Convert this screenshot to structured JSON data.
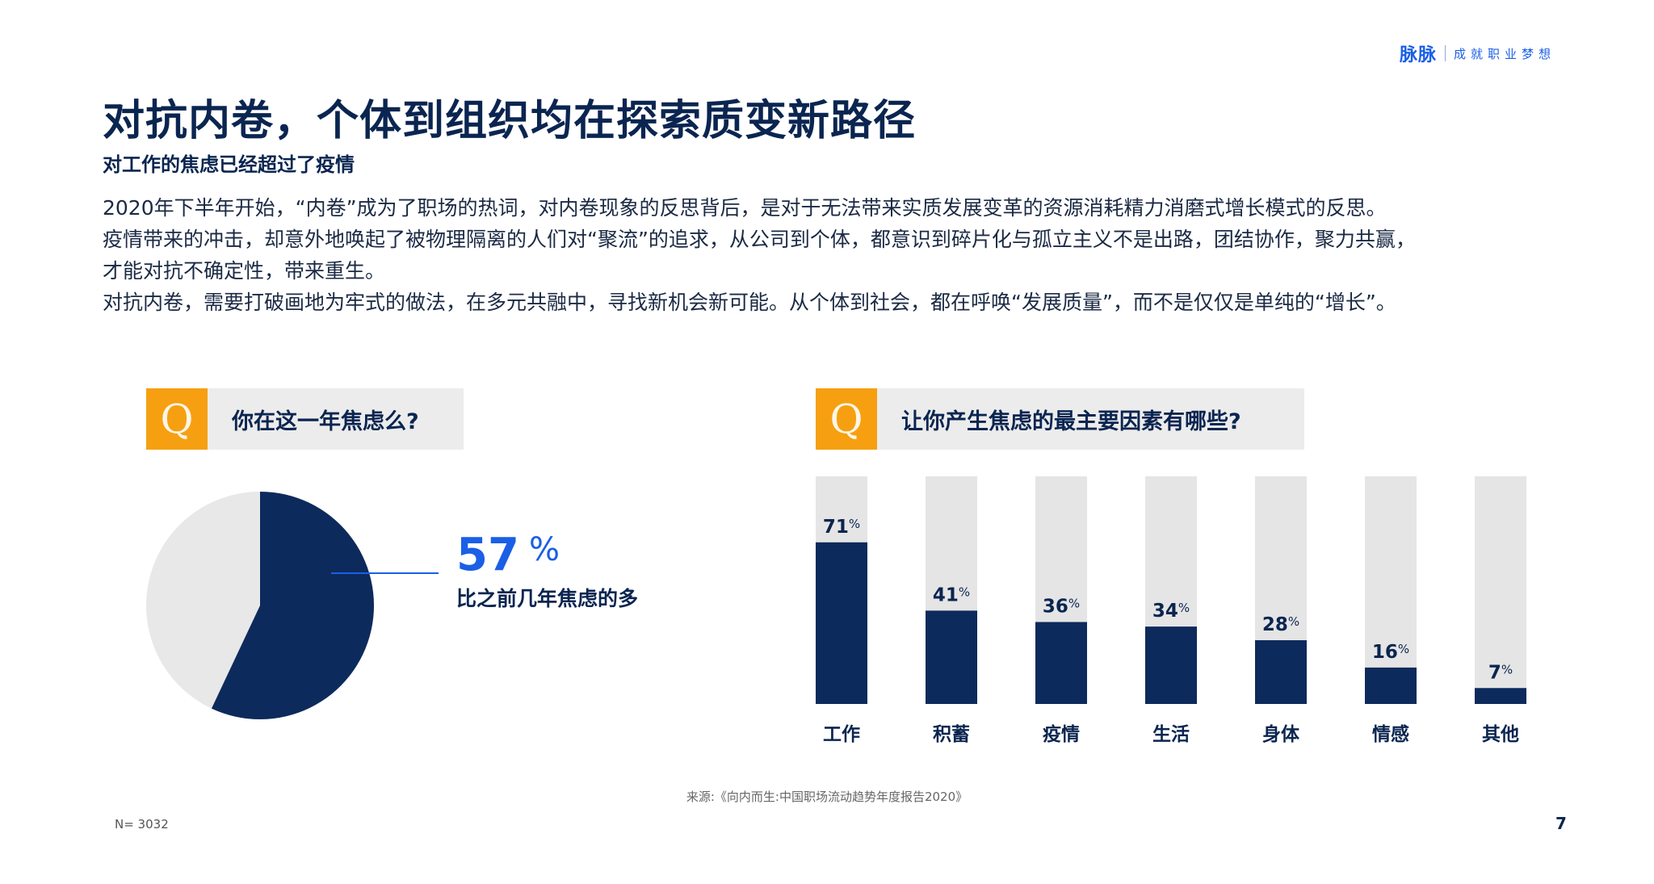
{
  "brand": {
    "logo": "脉脉",
    "slogan": "成就职业梦想"
  },
  "title": "对抗内卷，个体到组织均在探索质变新路径",
  "subtitle": "对工作的焦虑已经超过了疫情",
  "body": [
    "2020年下半年开始，“内卷”成为了职场的热词，对内卷现象的反思背后，是对于无法带来实质发展变革的资源消耗精力消磨式增长模式的反思。",
    "疫情带来的冲击，却意外地唤起了被物理隔离的人们对“聚流”的追求，从公司到个体，都意识到碎片化与孤立主义不是出路，团结协作，聚力共赢，",
    "才能对抗不确定性，带来重生。",
    "对抗内卷，需要打破画地为牢式的做法，在多元共融中，寻找新机会新可能。从个体到社会，都在呼唤“发展质量”，而不是仅仅是单纯的“增长”。"
  ],
  "questions": {
    "q1": {
      "icon_letter": "Q",
      "text": "你在这一年焦虑么?"
    },
    "q2": {
      "icon_letter": "Q",
      "text": "让你产生焦虑的最主要因素有哪些?"
    }
  },
  "chart_data": [
    {
      "type": "pie",
      "values": [
        57,
        43
      ],
      "highlight": {
        "value": "57",
        "unit": "%",
        "caption": "比之前几年焦虑的多"
      },
      "colors": [
        "#0d2a5c",
        "#e8e8e8"
      ]
    },
    {
      "type": "bar",
      "categories": [
        "工作",
        "积蓄",
        "疫情",
        "生活",
        "身体",
        "情感",
        "其他"
      ],
      "values": [
        71,
        41,
        36,
        34,
        28,
        16,
        7
      ],
      "value_suffix": "%",
      "ylim": [
        0,
        100
      ],
      "colors": {
        "bar": "#0d2a5c",
        "track": "#e5e5e5"
      }
    }
  ],
  "footer": {
    "source": "来源:《向内而生:中国职场流动趋势年度报告2020》",
    "sample": "N= 3032",
    "page_number": "7"
  }
}
